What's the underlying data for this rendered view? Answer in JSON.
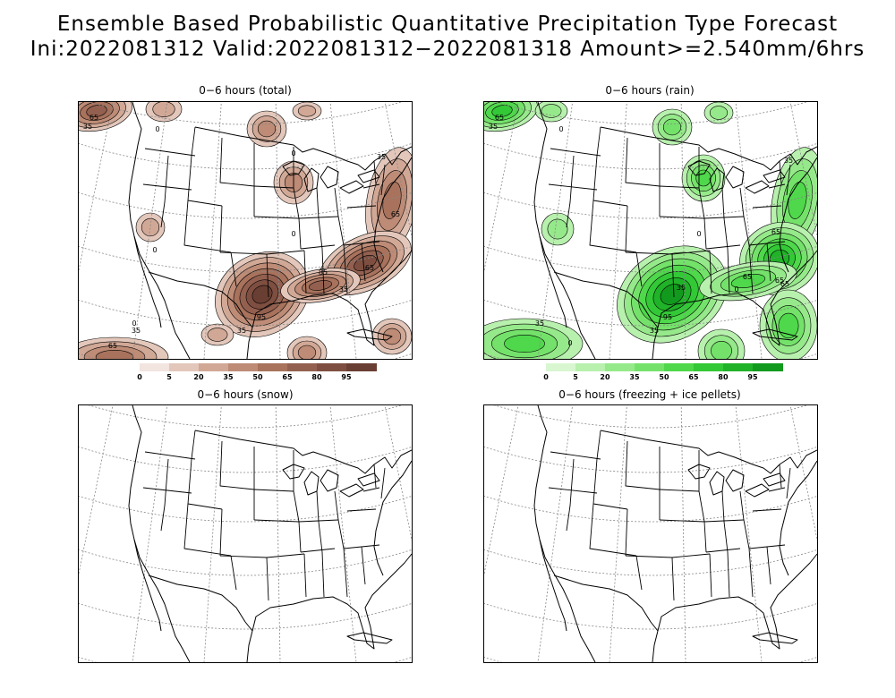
{
  "title": {
    "line1": "Ensemble Based Probabilistic Quantitative Precipitation Type Forecast",
    "line2": "Ini:2022081312 Valid:2022081312−2022081318 Amount>=2.540mm/6hrs"
  },
  "panels": [
    {
      "title": "0−6 hours (total)",
      "kind": "total"
    },
    {
      "title": "0−6 hours (rain)",
      "kind": "rain"
    },
    {
      "title": "0−6 hours (snow)",
      "kind": "none"
    },
    {
      "title": "0−6 hours (freezing + ice pellets)",
      "kind": "none"
    }
  ],
  "colorbars": {
    "levels": [
      "0",
      "5",
      "20",
      "35",
      "50",
      "65",
      "80",
      "95"
    ],
    "total_colors": [
      "#f2e4df",
      "#e3c7bb",
      "#d1a896",
      "#bd8b76",
      "#a8725c",
      "#936050",
      "#7e4f41",
      "#6a3f33"
    ],
    "rain_colors": [
      "#d8f7d0",
      "#b8f0ae",
      "#96e98a",
      "#74e26a",
      "#4fd84b",
      "#32c836",
      "#20b228",
      "#129a1e"
    ]
  },
  "contour_labels": {
    "total": [
      "65",
      "35",
      "0",
      "0",
      "35",
      "65",
      "85",
      "65",
      "35",
      "95",
      "35",
      "0",
      "35",
      "65",
      "0",
      "0"
    ],
    "rain": [
      "65",
      "35",
      "0",
      "35",
      "65",
      "65",
      "35",
      "95",
      "35",
      "0",
      "65",
      "65",
      "35",
      "0",
      "0"
    ]
  }
}
